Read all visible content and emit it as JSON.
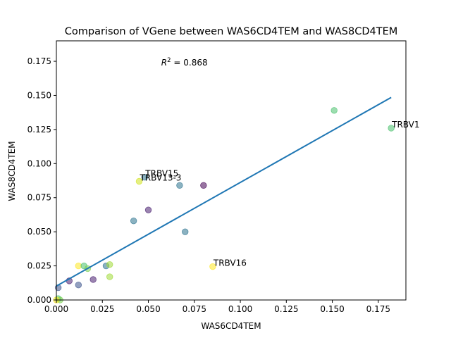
{
  "chart_data": {
    "type": "scatter",
    "title": "Comparison of VGene between WAS6CD4TEM and WAS8CD4TEM",
    "xlabel": "WAS6CD4TEM",
    "ylabel": "WAS8CD4TEM",
    "xlim": [
      0.0,
      0.19
    ],
    "ylim": [
      0.0,
      0.19
    ],
    "xticks": [
      0.0,
      0.025,
      0.05,
      0.075,
      0.1,
      0.125,
      0.15,
      0.175
    ],
    "xtick_labels": [
      "0.000",
      "0.025",
      "0.050",
      "0.075",
      "0.100",
      "0.125",
      "0.150",
      "0.175"
    ],
    "yticks": [
      0.0,
      0.025,
      0.05,
      0.075,
      0.1,
      0.125,
      0.15,
      0.175
    ],
    "ytick_labels": [
      "0.000",
      "0.025",
      "0.050",
      "0.075",
      "0.100",
      "0.125",
      "0.150",
      "0.175"
    ],
    "grid": false,
    "r2_prefix": "R",
    "r2_exponent": "2",
    "r2_value": " = 0.868",
    "r2_anchor": [
      0.057,
      0.172
    ],
    "fit_line": {
      "x": [
        0.0,
        0.182
      ],
      "y": [
        0.0102,
        0.1485
      ],
      "color": "#1f77b4"
    },
    "points": [
      {
        "x": 0.182,
        "y": 0.126,
        "color": "#4ac16d",
        "label": "TRBV1"
      },
      {
        "x": 0.151,
        "y": 0.139,
        "color": "#4ac16d",
        "label": ""
      },
      {
        "x": 0.048,
        "y": 0.09,
        "color": "#2c728e",
        "label": "TRBV15"
      },
      {
        "x": 0.045,
        "y": 0.087,
        "color": "#d0e11c",
        "label": "TRBV13-3"
      },
      {
        "x": 0.085,
        "y": 0.0245,
        "color": "#fde725",
        "label": "TRBV16"
      },
      {
        "x": 0.067,
        "y": 0.084,
        "color": "#2c728e",
        "label": ""
      },
      {
        "x": 0.08,
        "y": 0.084,
        "color": "#440154",
        "label": ""
      },
      {
        "x": 0.05,
        "y": 0.066,
        "color": "#481f70",
        "label": ""
      },
      {
        "x": 0.042,
        "y": 0.058,
        "color": "#2c728e",
        "label": ""
      },
      {
        "x": 0.07,
        "y": 0.05,
        "color": "#2c728e",
        "label": ""
      },
      {
        "x": 0.012,
        "y": 0.025,
        "color": "#fde725",
        "label": ""
      },
      {
        "x": 0.015,
        "y": 0.025,
        "color": "#4ac16d",
        "label": ""
      },
      {
        "x": 0.017,
        "y": 0.023,
        "color": "#7ad151",
        "label": ""
      },
      {
        "x": 0.027,
        "y": 0.025,
        "color": "#2c728e",
        "label": ""
      },
      {
        "x": 0.029,
        "y": 0.026,
        "color": "#a0da39",
        "label": ""
      },
      {
        "x": 0.029,
        "y": 0.017,
        "color": "#a0da39",
        "label": ""
      },
      {
        "x": 0.02,
        "y": 0.015,
        "color": "#481f70",
        "label": ""
      },
      {
        "x": 0.012,
        "y": 0.011,
        "color": "#3b528b",
        "label": ""
      },
      {
        "x": 0.007,
        "y": 0.014,
        "color": "#481f70",
        "label": ""
      },
      {
        "x": 0.001,
        "y": 0.009,
        "color": "#3b528b",
        "label": ""
      },
      {
        "x": 0.001,
        "y": 0.001,
        "color": "#4ac16d",
        "label": ""
      },
      {
        "x": 0.002,
        "y": 0.0,
        "color": "#7ad151",
        "label": ""
      },
      {
        "x": 0.0,
        "y": 0.0,
        "color": "#fde725",
        "label": ""
      }
    ]
  }
}
